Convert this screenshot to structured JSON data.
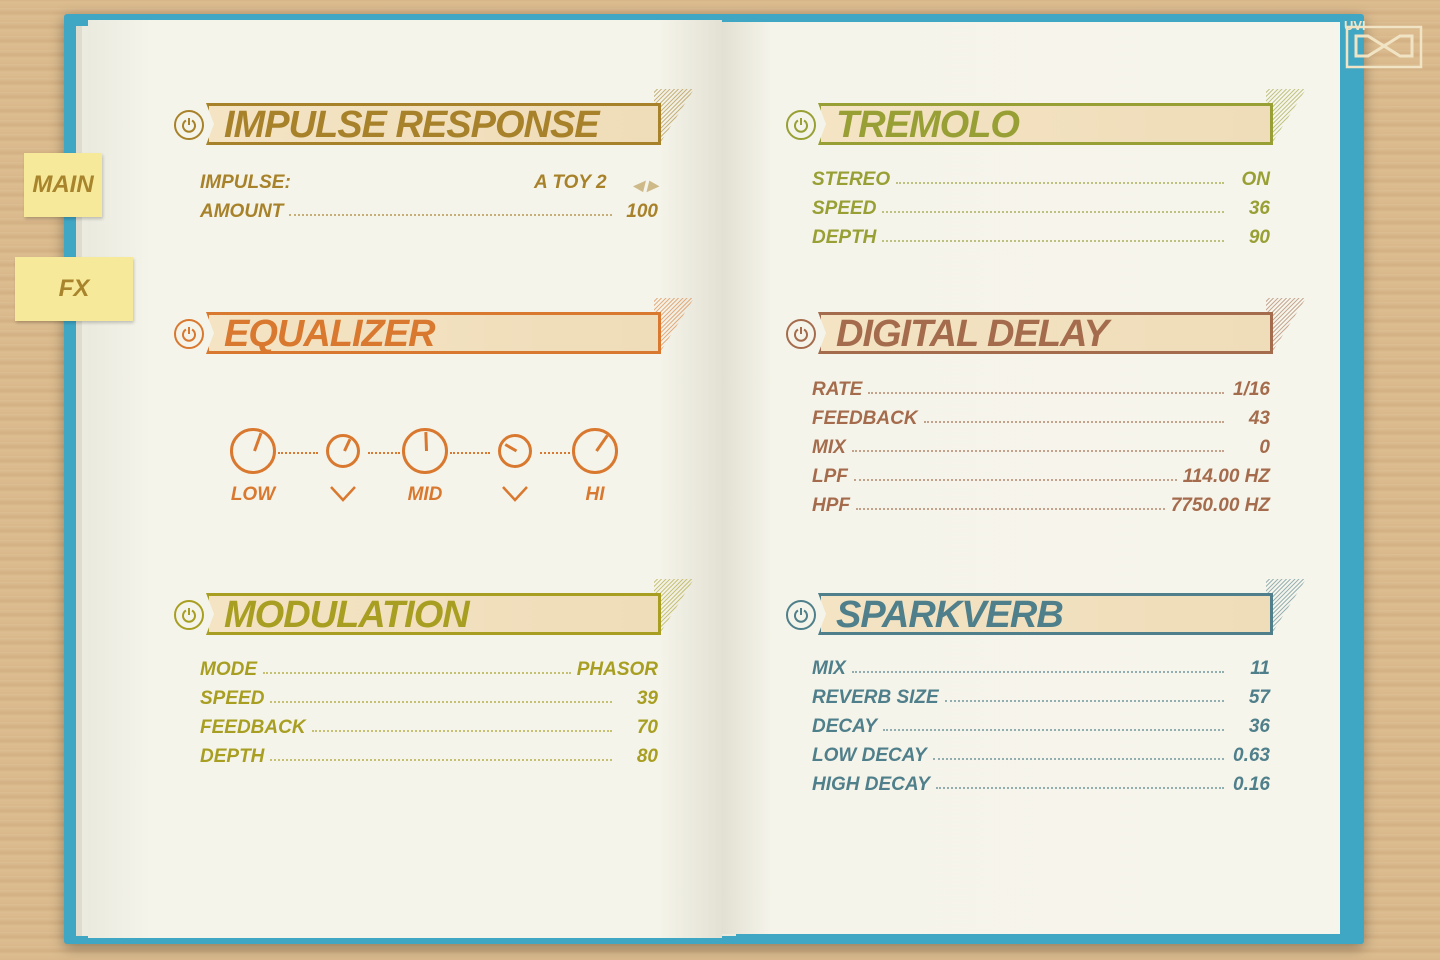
{
  "tabs": [
    {
      "label": "MAIN"
    },
    {
      "label": "FX"
    }
  ],
  "logo": {
    "text": "UVI"
  },
  "sections": {
    "impulse_response": {
      "title": "IMPULSE RESPONSE",
      "color": "#a8822a",
      "enabled": true,
      "rows": [
        {
          "label": "IMPULSE:",
          "value": "A TOY 2",
          "arrows": [
            "left-arrow",
            "right-arrow"
          ]
        },
        {
          "label": "AMOUNT",
          "value": "100"
        }
      ]
    },
    "equalizer": {
      "title": "EQUALIZER",
      "color": "#d9782f",
      "enabled": true,
      "knobs": [
        {
          "label": "LOW",
          "type": "knob"
        },
        {
          "label": "",
          "type": "small-knob"
        },
        {
          "label": "MID",
          "type": "knob"
        },
        {
          "label": "",
          "type": "small-knob"
        },
        {
          "label": "HI",
          "type": "knob"
        }
      ]
    },
    "modulation": {
      "title": "MODULATION",
      "color": "#a89f22",
      "enabled": true,
      "rows": [
        {
          "label": "MODE",
          "value": "PHASOR"
        },
        {
          "label": "SPEED",
          "value": "39"
        },
        {
          "label": "FEEDBACK",
          "value": "70"
        },
        {
          "label": "DEPTH",
          "value": "80"
        }
      ]
    },
    "tremolo": {
      "title": "TREMOLO",
      "color": "#98a035",
      "enabled": true,
      "rows": [
        {
          "label": "STEREO",
          "value": "ON"
        },
        {
          "label": "SPEED",
          "value": "36"
        },
        {
          "label": "DEPTH",
          "value": "90"
        }
      ]
    },
    "digital_delay": {
      "title": "DIGITAL DELAY",
      "color": "#a46c4c",
      "enabled": true,
      "rows": [
        {
          "label": "RATE",
          "value": "1/16"
        },
        {
          "label": "FEEDBACK",
          "value": "43"
        },
        {
          "label": "MIX",
          "value": "0"
        },
        {
          "label": "LPF",
          "value": "114.00 HZ"
        },
        {
          "label": "HPF",
          "value": "7750.00 HZ"
        }
      ]
    },
    "sparkverb": {
      "title": "SPARKVERB",
      "color": "#4f7f8a",
      "enabled": true,
      "rows": [
        {
          "label": "MIX",
          "value": "11"
        },
        {
          "label": "REVERB SIZE",
          "value": "57"
        },
        {
          "label": "DECAY",
          "value": "36"
        },
        {
          "label": "LOW DECAY",
          "value": "0.63"
        },
        {
          "label": "HIGH DECAY",
          "value": "0.16"
        }
      ]
    }
  }
}
